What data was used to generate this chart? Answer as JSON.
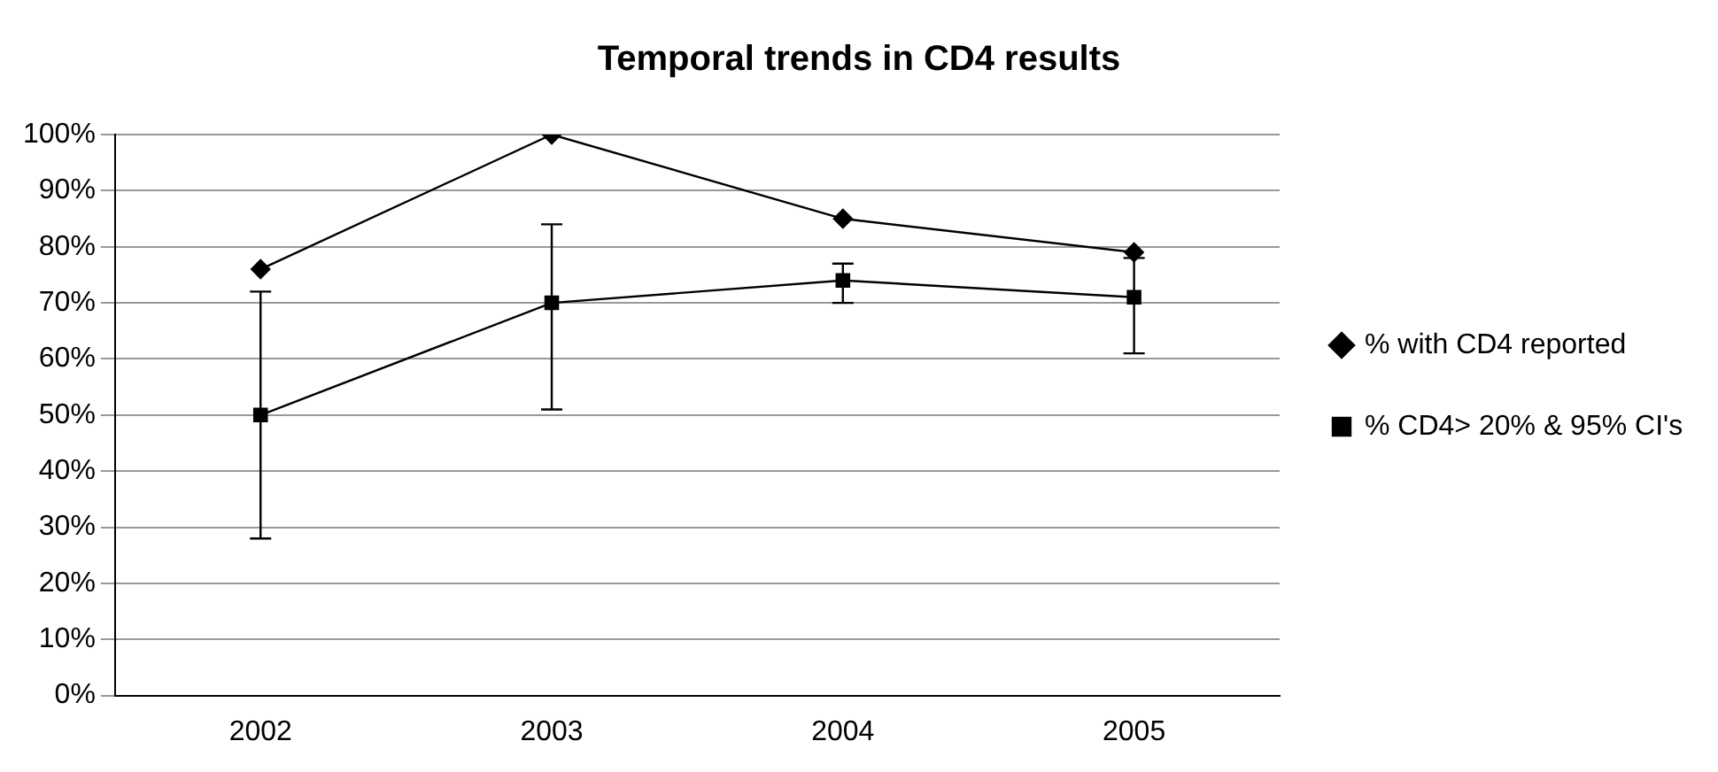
{
  "chart_data": {
    "type": "line",
    "title": "Temporal trends in CD4 results",
    "categories": [
      "2002",
      "2003",
      "2004",
      "2005"
    ],
    "series": [
      {
        "name": "% with CD4 reported",
        "color": "#000000",
        "marker": "diamond",
        "values": [
          76,
          100,
          85,
          79
        ]
      },
      {
        "name": "% CD4> 20% & 95% CI's",
        "color": "#000000",
        "marker": "square",
        "values": [
          50,
          70,
          74,
          71
        ],
        "errors": [
          [
            28,
            72
          ],
          [
            51,
            84
          ],
          [
            70,
            77
          ],
          [
            61,
            78
          ]
        ]
      }
    ],
    "ylim": [
      0,
      100
    ],
    "yticks": [
      {
        "value": 0,
        "label": "0%"
      },
      {
        "value": 10,
        "label": "10%"
      },
      {
        "value": 20,
        "label": "20%"
      },
      {
        "value": 30,
        "label": "30%"
      },
      {
        "value": 40,
        "label": "40%"
      },
      {
        "value": 50,
        "label": "50%"
      },
      {
        "value": 60,
        "label": "60%"
      },
      {
        "value": 70,
        "label": "70%"
      },
      {
        "value": 80,
        "label": "80%"
      },
      {
        "value": 90,
        "label": "90%"
      },
      {
        "value": 100,
        "label": "100%"
      }
    ],
    "grid": "y",
    "legend": "right",
    "line_style": "solid"
  }
}
